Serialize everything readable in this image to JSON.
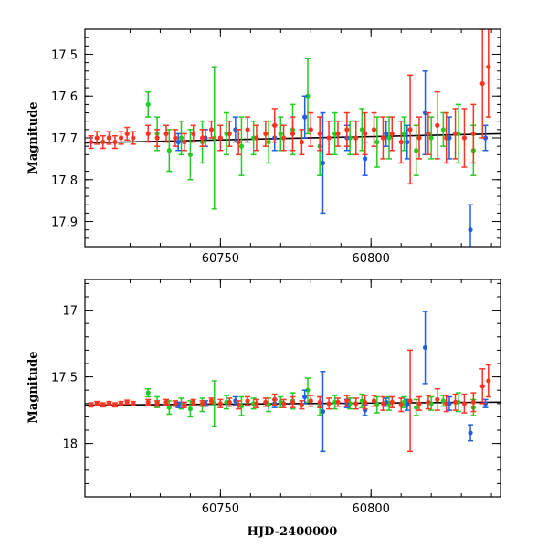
{
  "chart_data": [
    {
      "type": "scatter",
      "title": "",
      "xlabel": "",
      "ylabel": "Magnitude",
      "xlim": [
        60705,
        60843
      ],
      "ylim": [
        17.96,
        17.44
      ],
      "y_inverted": true,
      "xticks": [
        60750,
        60800
      ],
      "xtick_labels": [
        "60750",
        "60800"
      ],
      "yticks": [
        17.5,
        17.6,
        17.7,
        17.8,
        17.9
      ],
      "ytick_labels": [
        "17.5",
        "17.6",
        "17.7",
        "17.8",
        "17.9"
      ],
      "model_line": {
        "x": [
          60705,
          60843
        ],
        "y": [
          17.712,
          17.69
        ]
      },
      "series": [
        {
          "color": "#22cc22",
          "x": [
            60726,
            60729,
            60733,
            60737,
            60740,
            60744,
            60748,
            60752,
            60757,
            60761,
            60766,
            60770,
            60774,
            60779,
            60783,
            60788,
            60793,
            60797,
            60802,
            60806,
            60811,
            60815,
            60820,
            60824,
            60829,
            60834
          ],
          "y": [
            17.62,
            17.69,
            17.73,
            17.7,
            17.74,
            17.71,
            17.7,
            17.69,
            17.72,
            17.7,
            17.71,
            17.69,
            17.68,
            17.6,
            17.72,
            17.69,
            17.7,
            17.68,
            17.71,
            17.7,
            17.69,
            17.73,
            17.7,
            17.68,
            17.69,
            17.73
          ],
          "err": [
            0.03,
            0.04,
            0.05,
            0.04,
            0.06,
            0.05,
            0.17,
            0.05,
            0.07,
            0.04,
            0.05,
            0.04,
            0.06,
            0.09,
            0.07,
            0.05,
            0.04,
            0.05,
            0.06,
            0.05,
            0.04,
            0.06,
            0.05,
            0.04,
            0.07,
            0.06
          ]
        },
        {
          "color": "#1f5fe0",
          "x": [
            60736,
            60745,
            60755,
            60768,
            60778,
            60784,
            60792,
            60798,
            60805,
            60812,
            60818,
            60826,
            60833,
            60838
          ],
          "y": [
            17.71,
            17.7,
            17.68,
            17.7,
            17.65,
            17.76,
            17.7,
            17.75,
            17.69,
            17.71,
            17.64,
            17.7,
            17.92,
            17.7
          ],
          "err": [
            0.02,
            0.02,
            0.03,
            0.03,
            0.05,
            0.12,
            0.03,
            0.04,
            0.03,
            0.04,
            0.1,
            0.05,
            0.06,
            0.03
          ]
        },
        {
          "color": "#ff3322",
          "x": [
            60707,
            60709,
            60711,
            60713,
            60715,
            60717,
            60719,
            60721,
            60726,
            60729,
            60732,
            60735,
            60738,
            60741,
            60744,
            60747,
            60750,
            60753,
            60756,
            60759,
            60762,
            60765,
            60768,
            60771,
            60774,
            60777,
            60780,
            60783,
            60786,
            60789,
            60792,
            60795,
            60798,
            60801,
            60804,
            60807,
            60810,
            60813,
            60816,
            60819,
            60822,
            60825,
            60828,
            60831,
            60834,
            60837,
            60839
          ],
          "y": [
            17.71,
            17.7,
            17.71,
            17.7,
            17.71,
            17.7,
            17.69,
            17.7,
            17.69,
            17.7,
            17.69,
            17.7,
            17.71,
            17.69,
            17.7,
            17.68,
            17.7,
            17.69,
            17.71,
            17.68,
            17.7,
            17.69,
            17.67,
            17.7,
            17.69,
            17.71,
            17.68,
            17.69,
            17.7,
            17.69,
            17.68,
            17.7,
            17.69,
            17.68,
            17.7,
            17.69,
            17.71,
            17.68,
            17.7,
            17.69,
            17.67,
            17.7,
            17.69,
            17.7,
            17.69,
            17.57,
            17.53
          ],
          "err": [
            0.015,
            0.015,
            0.015,
            0.015,
            0.015,
            0.015,
            0.015,
            0.015,
            0.02,
            0.02,
            0.02,
            0.02,
            0.02,
            0.02,
            0.02,
            0.02,
            0.03,
            0.03,
            0.03,
            0.03,
            0.03,
            0.03,
            0.04,
            0.03,
            0.04,
            0.03,
            0.04,
            0.04,
            0.04,
            0.03,
            0.04,
            0.04,
            0.05,
            0.04,
            0.05,
            0.04,
            0.05,
            0.13,
            0.05,
            0.05,
            0.08,
            0.06,
            0.06,
            0.07,
            0.07,
            0.13,
            0.12
          ]
        }
      ]
    },
    {
      "type": "scatter",
      "title": "",
      "xlabel": "HJD-2400000",
      "ylabel": "Magnitude",
      "xlim": [
        60705,
        60843
      ],
      "ylim": [
        18.4,
        16.77
      ],
      "y_inverted": true,
      "xticks": [
        60750,
        60800
      ],
      "xtick_labels": [
        "60750",
        "60800"
      ],
      "yticks": [
        17.0,
        17.5,
        18.0
      ],
      "ytick_labels": [
        "17",
        "17.5",
        "18"
      ],
      "model_line": {
        "x": [
          60705,
          60843
        ],
        "y": [
          17.712,
          17.69
        ]
      },
      "series": [
        {
          "color": "#22cc22",
          "x": [
            60726,
            60729,
            60733,
            60737,
            60740,
            60744,
            60748,
            60752,
            60757,
            60761,
            60766,
            60770,
            60774,
            60779,
            60783,
            60788,
            60793,
            60797,
            60802,
            60806,
            60811,
            60815,
            60820,
            60824,
            60829,
            60834
          ],
          "y": [
            17.62,
            17.69,
            17.73,
            17.7,
            17.74,
            17.71,
            17.7,
            17.69,
            17.72,
            17.7,
            17.71,
            17.69,
            17.68,
            17.6,
            17.72,
            17.69,
            17.7,
            17.68,
            17.71,
            17.7,
            17.69,
            17.73,
            17.7,
            17.68,
            17.69,
            17.73
          ],
          "err": [
            0.03,
            0.04,
            0.05,
            0.04,
            0.06,
            0.05,
            0.17,
            0.05,
            0.07,
            0.04,
            0.05,
            0.04,
            0.06,
            0.09,
            0.07,
            0.05,
            0.04,
            0.05,
            0.06,
            0.05,
            0.04,
            0.06,
            0.05,
            0.04,
            0.07,
            0.06
          ]
        },
        {
          "color": "#1f5fe0",
          "x": [
            60736,
            60745,
            60755,
            60768,
            60778,
            60784,
            60792,
            60798,
            60805,
            60812,
            60818,
            60826,
            60833,
            60838
          ],
          "y": [
            17.71,
            17.7,
            17.68,
            17.7,
            17.65,
            17.76,
            17.7,
            17.75,
            17.69,
            17.71,
            17.28,
            17.7,
            17.92,
            17.7
          ],
          "err": [
            0.02,
            0.02,
            0.03,
            0.03,
            0.05,
            0.3,
            0.03,
            0.04,
            0.03,
            0.04,
            0.27,
            0.05,
            0.06,
            0.03
          ]
        },
        {
          "color": "#ff3322",
          "x": [
            60707,
            60709,
            60711,
            60713,
            60715,
            60717,
            60719,
            60721,
            60726,
            60729,
            60732,
            60735,
            60738,
            60741,
            60744,
            60747,
            60750,
            60753,
            60756,
            60759,
            60762,
            60765,
            60768,
            60771,
            60774,
            60777,
            60780,
            60783,
            60786,
            60789,
            60792,
            60795,
            60798,
            60801,
            60804,
            60807,
            60810,
            60813,
            60816,
            60819,
            60822,
            60825,
            60828,
            60831,
            60834,
            60837,
            60839
          ],
          "y": [
            17.71,
            17.7,
            17.71,
            17.7,
            17.71,
            17.7,
            17.69,
            17.7,
            17.69,
            17.7,
            17.69,
            17.7,
            17.71,
            17.69,
            17.7,
            17.68,
            17.7,
            17.69,
            17.71,
            17.68,
            17.7,
            17.69,
            17.67,
            17.7,
            17.69,
            17.71,
            17.68,
            17.69,
            17.7,
            17.69,
            17.68,
            17.7,
            17.69,
            17.68,
            17.7,
            17.69,
            17.71,
            17.68,
            17.7,
            17.69,
            17.67,
            17.7,
            17.69,
            17.7,
            17.69,
            17.57,
            17.53
          ],
          "err": [
            0.015,
            0.015,
            0.015,
            0.015,
            0.015,
            0.015,
            0.015,
            0.015,
            0.02,
            0.02,
            0.02,
            0.02,
            0.02,
            0.02,
            0.02,
            0.02,
            0.03,
            0.03,
            0.03,
            0.03,
            0.03,
            0.03,
            0.04,
            0.03,
            0.04,
            0.03,
            0.04,
            0.04,
            0.04,
            0.03,
            0.04,
            0.04,
            0.05,
            0.04,
            0.05,
            0.04,
            0.05,
            0.38,
            0.05,
            0.05,
            0.08,
            0.06,
            0.06,
            0.07,
            0.07,
            0.13,
            0.12
          ]
        }
      ]
    }
  ]
}
